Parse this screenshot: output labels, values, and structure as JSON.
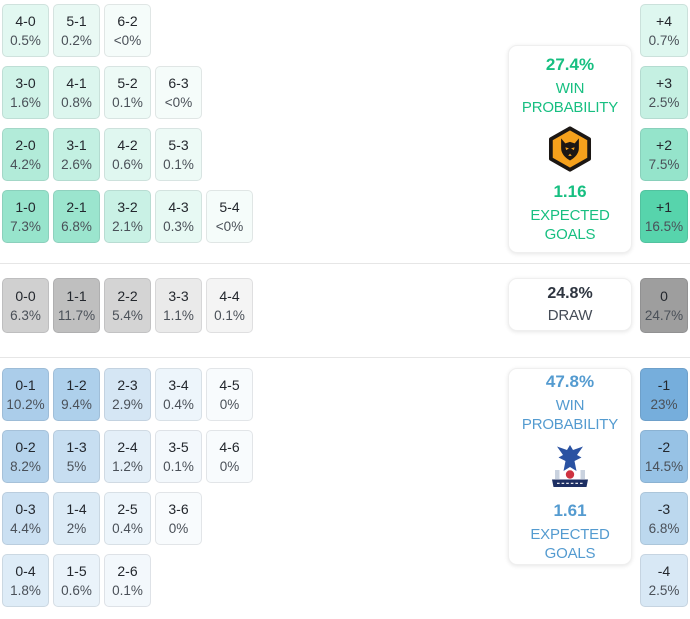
{
  "chart_data": {
    "type": "heatmap",
    "description": "Correct-score and goal-difference probability matrix",
    "sections": {
      "home": {
        "accent": "#17bf81",
        "heat_base": "#00be82",
        "card": {
          "win_pct": "27.4%",
          "win_label": "WIN PROBABILITY",
          "xg": "1.16",
          "xg_label": "EXPECTED GOALS",
          "crest_icon": "wolves-crest"
        },
        "grid": [
          [
            {
              "s": "4-0",
              "p": "0.5%",
              "v": 0.5
            },
            {
              "s": "5-1",
              "p": "0.2%",
              "v": 0.2
            },
            {
              "s": "6-2",
              "p": "<0%",
              "v": 0
            }
          ],
          [
            {
              "s": "3-0",
              "p": "1.6%",
              "v": 1.6
            },
            {
              "s": "4-1",
              "p": "0.8%",
              "v": 0.8
            },
            {
              "s": "5-2",
              "p": "0.1%",
              "v": 0.1
            },
            {
              "s": "6-3",
              "p": "<0%",
              "v": 0
            }
          ],
          [
            {
              "s": "2-0",
              "p": "4.2%",
              "v": 4.2
            },
            {
              "s": "3-1",
              "p": "2.6%",
              "v": 2.6
            },
            {
              "s": "4-2",
              "p": "0.6%",
              "v": 0.6
            },
            {
              "s": "5-3",
              "p": "0.1%",
              "v": 0.1
            }
          ],
          [
            {
              "s": "1-0",
              "p": "7.3%",
              "v": 7.3
            },
            {
              "s": "2-1",
              "p": "6.8%",
              "v": 6.8
            },
            {
              "s": "3-2",
              "p": "2.1%",
              "v": 2.1
            },
            {
              "s": "4-3",
              "p": "0.3%",
              "v": 0.3
            },
            {
              "s": "5-4",
              "p": "<0%",
              "v": 0
            }
          ]
        ],
        "diff": [
          {
            "d": "+4",
            "p": "0.7%",
            "v": 0.7
          },
          {
            "d": "+3",
            "p": "2.5%",
            "v": 2.5
          },
          {
            "d": "+2",
            "p": "7.5%",
            "v": 7.5
          },
          {
            "d": "+1",
            "p": "16.5%",
            "v": 16.5
          }
        ]
      },
      "draw": {
        "heat_base": "#6e6e6e",
        "card": {
          "pct": "24.8%",
          "label": "DRAW"
        },
        "grid": [
          [
            {
              "s": "0-0",
              "p": "6.3%",
              "v": 6.3
            },
            {
              "s": "1-1",
              "p": "11.7%",
              "v": 11.7
            },
            {
              "s": "2-2",
              "p": "5.4%",
              "v": 5.4
            },
            {
              "s": "3-3",
              "p": "1.1%",
              "v": 1.1
            },
            {
              "s": "4-4",
              "p": "0.1%",
              "v": 0.1
            }
          ]
        ],
        "diff": [
          {
            "d": "0",
            "p": "24.7%",
            "v": 24.7
          }
        ]
      },
      "away": {
        "accent": "#549bd0",
        "heat_base": "#559bd4",
        "card": {
          "win_pct": "47.8%",
          "win_label": "WIN PROBABILITY",
          "xg": "1.61",
          "xg_label": "EXPECTED GOALS",
          "crest_icon": "crystal-palace-crest"
        },
        "grid": [
          [
            {
              "s": "0-1",
              "p": "10.2%",
              "v": 10.2
            },
            {
              "s": "1-2",
              "p": "9.4%",
              "v": 9.4
            },
            {
              "s": "2-3",
              "p": "2.9%",
              "v": 2.9
            },
            {
              "s": "3-4",
              "p": "0.4%",
              "v": 0.4
            },
            {
              "s": "4-5",
              "p": "0%",
              "v": 0
            }
          ],
          [
            {
              "s": "0-2",
              "p": "8.2%",
              "v": 8.2
            },
            {
              "s": "1-3",
              "p": "5%",
              "v": 5
            },
            {
              "s": "2-4",
              "p": "1.2%",
              "v": 1.2
            },
            {
              "s": "3-5",
              "p": "0.1%",
              "v": 0.1
            },
            {
              "s": "4-6",
              "p": "0%",
              "v": 0
            }
          ],
          [
            {
              "s": "0-3",
              "p": "4.4%",
              "v": 4.4
            },
            {
              "s": "1-4",
              "p": "2%",
              "v": 2
            },
            {
              "s": "2-5",
              "p": "0.4%",
              "v": 0.4
            },
            {
              "s": "3-6",
              "p": "0%",
              "v": 0
            }
          ],
          [
            {
              "s": "0-4",
              "p": "1.8%",
              "v": 1.8
            },
            {
              "s": "1-5",
              "p": "0.6%",
              "v": 0.6
            },
            {
              "s": "2-6",
              "p": "0.1%",
              "v": 0.1
            }
          ]
        ],
        "diff": [
          {
            "d": "-1",
            "p": "23%",
            "v": 23
          },
          {
            "d": "-2",
            "p": "14.5%",
            "v": 14.5
          },
          {
            "d": "-3",
            "p": "6.8%",
            "v": 6.8
          },
          {
            "d": "-4",
            "p": "2.5%",
            "v": 2.5
          }
        ]
      }
    },
    "crest_colors": {
      "wolves_gold": "#F6A11C",
      "wolves_black": "#1c1714",
      "palace_blue": "#2a52a2",
      "palace_navy": "#1d2f63",
      "palace_red": "#cf3340",
      "palace_tower_gray": "#c9d2df"
    }
  }
}
